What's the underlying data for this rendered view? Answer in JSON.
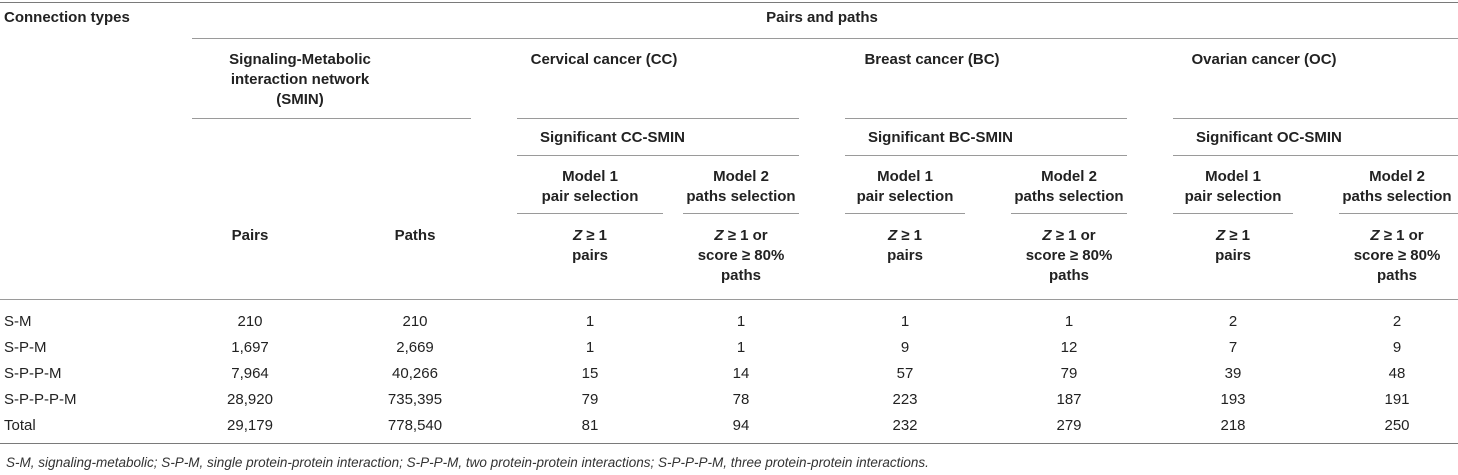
{
  "table": {
    "row_header_title": "Connection types",
    "group_title": "Pairs and paths",
    "smin_title_lines": [
      "Signaling-Metabolic",
      "interaction network",
      "(SMIN)"
    ],
    "cancers": [
      {
        "title": "Cervical cancer (CC)",
        "subtitle": "Significant CC-SMIN"
      },
      {
        "title": "Breast cancer (BC)",
        "subtitle": "Significant BC-SMIN"
      },
      {
        "title": "Ovarian cancer (OC)",
        "subtitle": "Significant OC-SMIN"
      }
    ],
    "model1_lines": [
      "Model 1",
      "pair selection"
    ],
    "model2_lines": [
      "Model 2",
      "paths selection"
    ],
    "crit1_lines": [
      "Z ≥ 1",
      "pairs"
    ],
    "crit2_lines": [
      "Z ≥ 1 or",
      "score ≥ 80%",
      "paths"
    ],
    "smin_cols": [
      "Pairs",
      "Paths"
    ],
    "rows": [
      {
        "label": "S-M",
        "values": [
          "210",
          "210",
          "1",
          "1",
          "1",
          "1",
          "2",
          "2"
        ]
      },
      {
        "label": "S-P-M",
        "values": [
          "1,697",
          "2,669",
          "1",
          "1",
          "9",
          "12",
          "7",
          "9"
        ]
      },
      {
        "label": "S-P-P-M",
        "values": [
          "7,964",
          "40,266",
          "15",
          "14",
          "57",
          "79",
          "39",
          "48"
        ]
      },
      {
        "label": "S-P-P-P-M",
        "values": [
          "28,920",
          "735,395",
          "79",
          "78",
          "223",
          "187",
          "193",
          "191"
        ]
      },
      {
        "label": "Total",
        "values": [
          "29,179",
          "778,540",
          "81",
          "94",
          "232",
          "279",
          "218",
          "250"
        ]
      }
    ]
  },
  "footnote": "S-M, signaling-metabolic; S-P-M, single protein-protein interaction; S-P-P-M, two protein-protein interactions; S-P-P-P-M, three protein-protein interactions."
}
